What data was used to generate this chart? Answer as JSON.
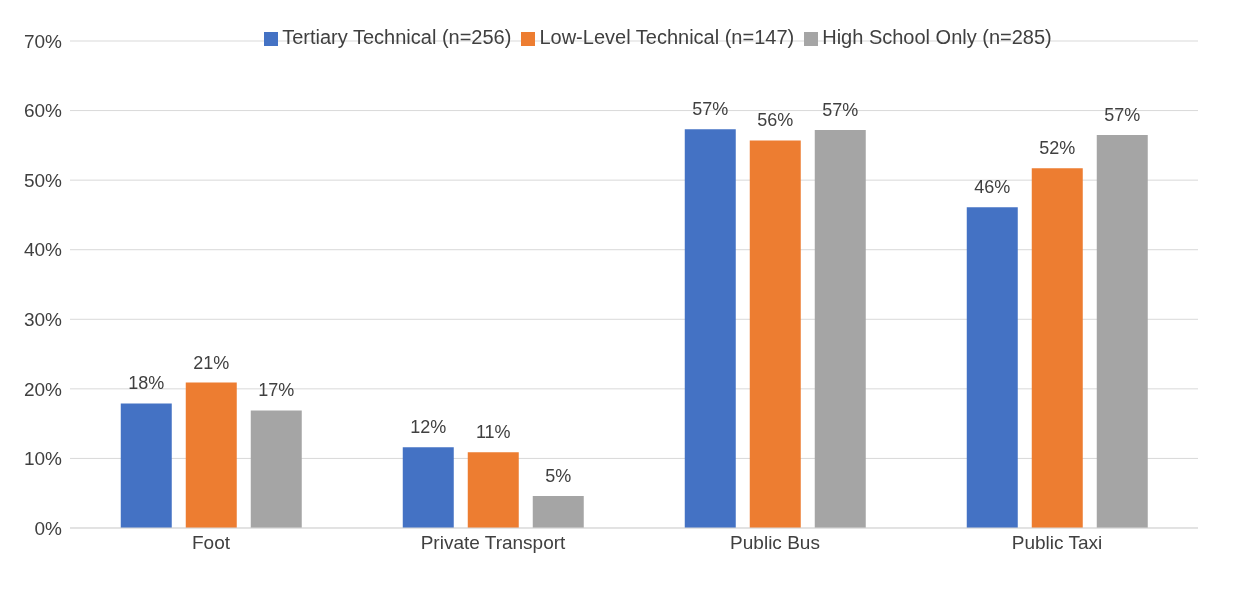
{
  "chart_data": {
    "type": "bar",
    "categories": [
      "Foot",
      "Private Transport",
      "Public Bus",
      "Public Taxi"
    ],
    "series": [
      {
        "name": "Tertiary Technical (n=256)",
        "color": "#4472c4",
        "values": [
          17.9,
          11.6,
          57.3,
          46.1
        ],
        "value_labels": [
          "18%",
          "12%",
          "57%",
          "46%"
        ]
      },
      {
        "name": "Low-Level Technical (n=147)",
        "color": "#ed7d31",
        "values": [
          20.9,
          10.9,
          55.7,
          51.7
        ],
        "value_labels": [
          "21%",
          "11%",
          "56%",
          "52%"
        ]
      },
      {
        "name": "High School Only (n=285)",
        "color": "#a5a5a5",
        "values": [
          16.9,
          4.6,
          57.2,
          56.5
        ],
        "value_labels": [
          "17%",
          "5%",
          "57%",
          "57%"
        ]
      }
    ],
    "ylim": [
      0,
      70
    ],
    "yticks": [
      {
        "value": 0,
        "label": "0%"
      },
      {
        "value": 10,
        "label": "10%"
      },
      {
        "value": 20,
        "label": "20%"
      },
      {
        "value": 30,
        "label": "30%"
      },
      {
        "value": 40,
        "label": "40%"
      },
      {
        "value": 50,
        "label": "50%"
      },
      {
        "value": 60,
        "label": "60%"
      },
      {
        "value": 70,
        "label": "70%"
      }
    ],
    "grid": "y",
    "legend": "top"
  }
}
